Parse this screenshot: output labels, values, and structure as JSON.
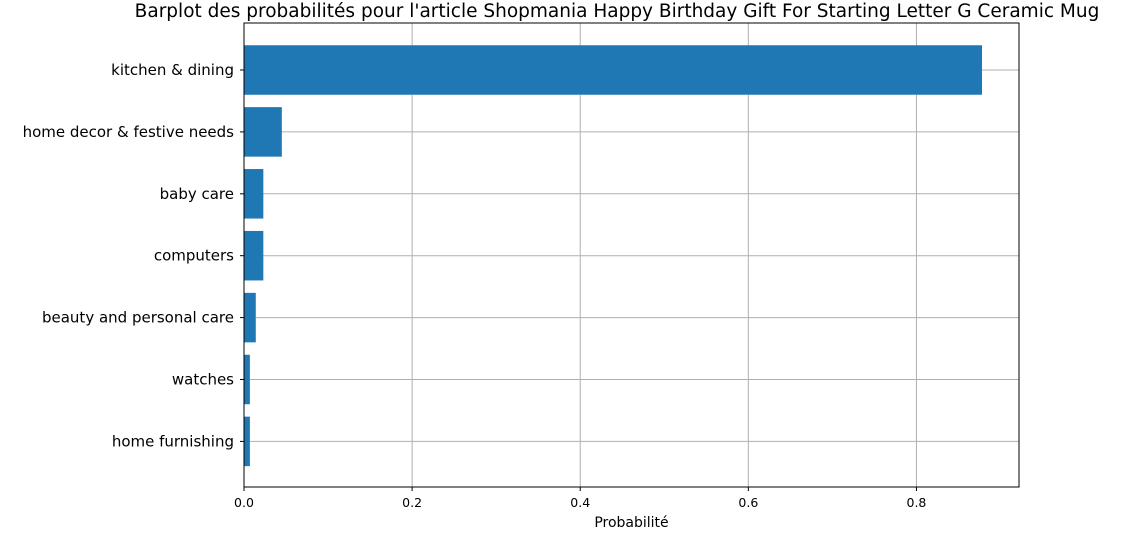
{
  "chart_data": {
    "type": "bar",
    "orientation": "horizontal",
    "title": "Barplot des probabilités pour l'article Shopmania Happy Birthday Gift For Starting Letter G Ceramic Mug",
    "xlabel": "Probabilité",
    "ylabel": "",
    "categories": [
      "kitchen & dining",
      "home decor & festive needs",
      "baby care",
      "computers",
      "beauty and personal care",
      "watches",
      "home furnishing"
    ],
    "values": [
      0.878,
      0.045,
      0.023,
      0.023,
      0.014,
      0.007,
      0.007
    ],
    "xlim": [
      0,
      0.922
    ],
    "xticks": [
      0.0,
      0.2,
      0.4,
      0.6,
      0.8
    ],
    "xtick_labels": [
      "0.0",
      "0.2",
      "0.4",
      "0.6",
      "0.8"
    ],
    "grid": true,
    "bar_color": "#1f77b4"
  }
}
